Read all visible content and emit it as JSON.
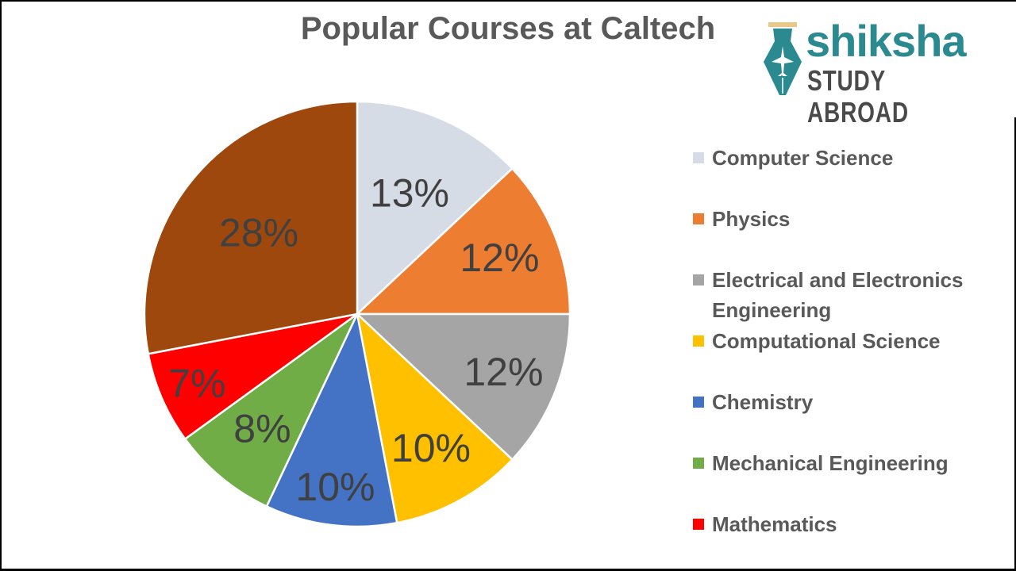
{
  "title": "Popular Courses at Caltech",
  "logo": {
    "brand": "shiksha",
    "tagline": "STUDY ABROAD",
    "brand_color": "#2a8a8f"
  },
  "legend": {
    "items": [
      {
        "label": "Computer Science",
        "color": "#D6DCE5"
      },
      {
        "label": "Physics",
        "color": "#ED7D31"
      },
      {
        "label": "Electrical and Electronics Engineering",
        "color": "#A5A5A5"
      },
      {
        "label": "Computational Science",
        "color": "#FFC000"
      },
      {
        "label": "Chemistry",
        "color": "#4472C4"
      },
      {
        "label": "Mechanical Engineering",
        "color": "#70AD47"
      },
      {
        "label": "Mathematics",
        "color": "#FF0000"
      }
    ]
  },
  "chart_data": {
    "type": "pie",
    "title": "Popular Courses at Caltech",
    "categories": [
      "Computer Science",
      "Physics",
      "Electrical and Electronics Engineering",
      "Computational Science",
      "Chemistry",
      "Mechanical Engineering",
      "Mathematics",
      ""
    ],
    "values": [
      13,
      12,
      12,
      10,
      10,
      8,
      7,
      28
    ],
    "labels": [
      "13%",
      "12%",
      "12%",
      "10%",
      "10%",
      "8%",
      "7%",
      "28%"
    ],
    "colors": [
      "#D6DCE5",
      "#ED7D31",
      "#A5A5A5",
      "#FFC000",
      "#4472C4",
      "#70AD47",
      "#FF0000",
      "#9E480E"
    ],
    "start_angle": "12 o'clock",
    "direction": "clockwise",
    "legend_position": "right",
    "note": "Eighth slice (28%, brown) has no visible legend entry"
  }
}
